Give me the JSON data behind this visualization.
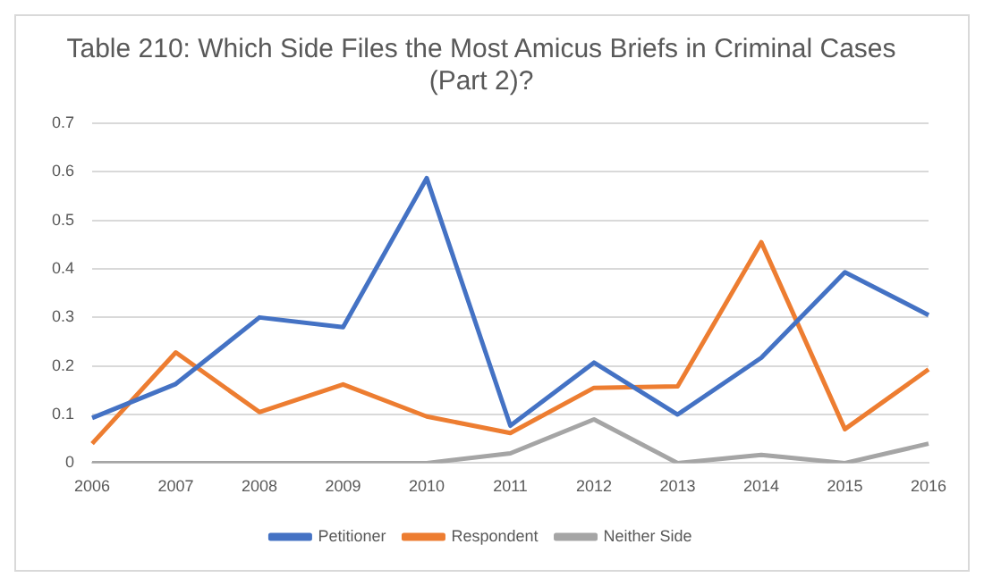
{
  "chart_data": {
    "type": "line",
    "title": "Table 210: Which Side Files the Most Amicus Briefs in Criminal Cases (Part 2)?",
    "categories": [
      "2006",
      "2007",
      "2008",
      "2009",
      "2010",
      "2011",
      "2012",
      "2013",
      "2014",
      "2015",
      "2016"
    ],
    "series": [
      {
        "name": "Petitioner",
        "color": "#4472c4",
        "values": [
          0.093,
          0.163,
          0.3,
          0.28,
          0.587,
          0.077,
          0.207,
          0.1,
          0.217,
          0.393,
          0.305
        ]
      },
      {
        "name": "Respondent",
        "color": "#ed7d31",
        "values": [
          0.04,
          0.228,
          0.105,
          0.162,
          0.096,
          0.062,
          0.155,
          0.158,
          0.455,
          0.07,
          0.193
        ]
      },
      {
        "name": "Neither Side",
        "color": "#a5a5a5",
        "values": [
          0,
          0,
          0,
          0,
          0,
          0.02,
          0.09,
          0,
          0.017,
          0,
          0.04
        ]
      }
    ],
    "ylim": [
      0,
      0.7
    ],
    "yticks": [
      0,
      0.1,
      0.2,
      0.3,
      0.4,
      0.5,
      0.6,
      0.7
    ],
    "grid": "y",
    "legend": "bottom",
    "marker": "none",
    "line_style": "solid"
  }
}
